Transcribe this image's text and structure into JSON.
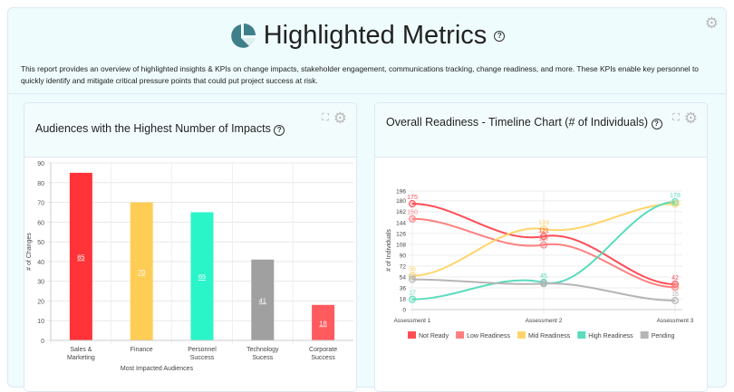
{
  "header": {
    "title": "Highlighted Metrics",
    "help": "?",
    "icon": "pie-chart-icon",
    "description": "This report provides an overview of highlighted insights & KPIs on change impacts, stakeholder engagement, communications tracking, change readiness, and more. These KPIs enable key personnel to quickly identify and mitigate critical pressure points that could put project success at risk."
  },
  "cards": [
    {
      "title": "Audiences with the Highest Number of Impacts",
      "help": "?"
    },
    {
      "title": "Overall Readiness - Timeline Chart (# of Individuals)",
      "help": "?"
    }
  ],
  "chart_data": [
    {
      "type": "bar",
      "categories": [
        "Sales & Marketing",
        "Finance",
        "Personnel Success",
        "Technology Sucess",
        "Corporate Success"
      ],
      "values": [
        85,
        70,
        65,
        41,
        18
      ],
      "colors": [
        "#ff3338",
        "#ffcd56",
        "#2af5c8",
        "#a0a0a0",
        "#ff5a5e"
      ],
      "xlabel": "Most Impacted Audiences",
      "ylabel": "# of Changes",
      "ylim": [
        0,
        90
      ],
      "yticks": [
        0,
        10,
        20,
        30,
        40,
        50,
        60,
        70,
        80,
        90
      ],
      "grid": true
    },
    {
      "type": "line",
      "categories": [
        "Assessment 1",
        "Assessment 2",
        "Assessment 3"
      ],
      "ylabel": "# of Individuals",
      "ylim": [
        0,
        196
      ],
      "yticks": [
        0,
        18,
        36,
        54,
        72,
        90,
        108,
        126,
        144,
        162,
        180,
        196
      ],
      "grid": true,
      "legend": "bottom",
      "series": [
        {
          "name": "Not Ready",
          "values": [
            175,
            121,
            42
          ],
          "color": "#ff4d55"
        },
        {
          "name": "Low Readiness",
          "values": [
            150,
            107,
            37
          ],
          "color": "#ff8080"
        },
        {
          "name": "Mid Readiness",
          "values": [
            56,
            133,
            175
          ],
          "color": "#ffd56b"
        },
        {
          "name": "High Readiness",
          "values": [
            17,
            45,
            178
          ],
          "color": "#5adcbd"
        },
        {
          "name": "Pending",
          "values": [
            50,
            43,
            15
          ],
          "color": "#b5b5b5"
        }
      ]
    }
  ]
}
